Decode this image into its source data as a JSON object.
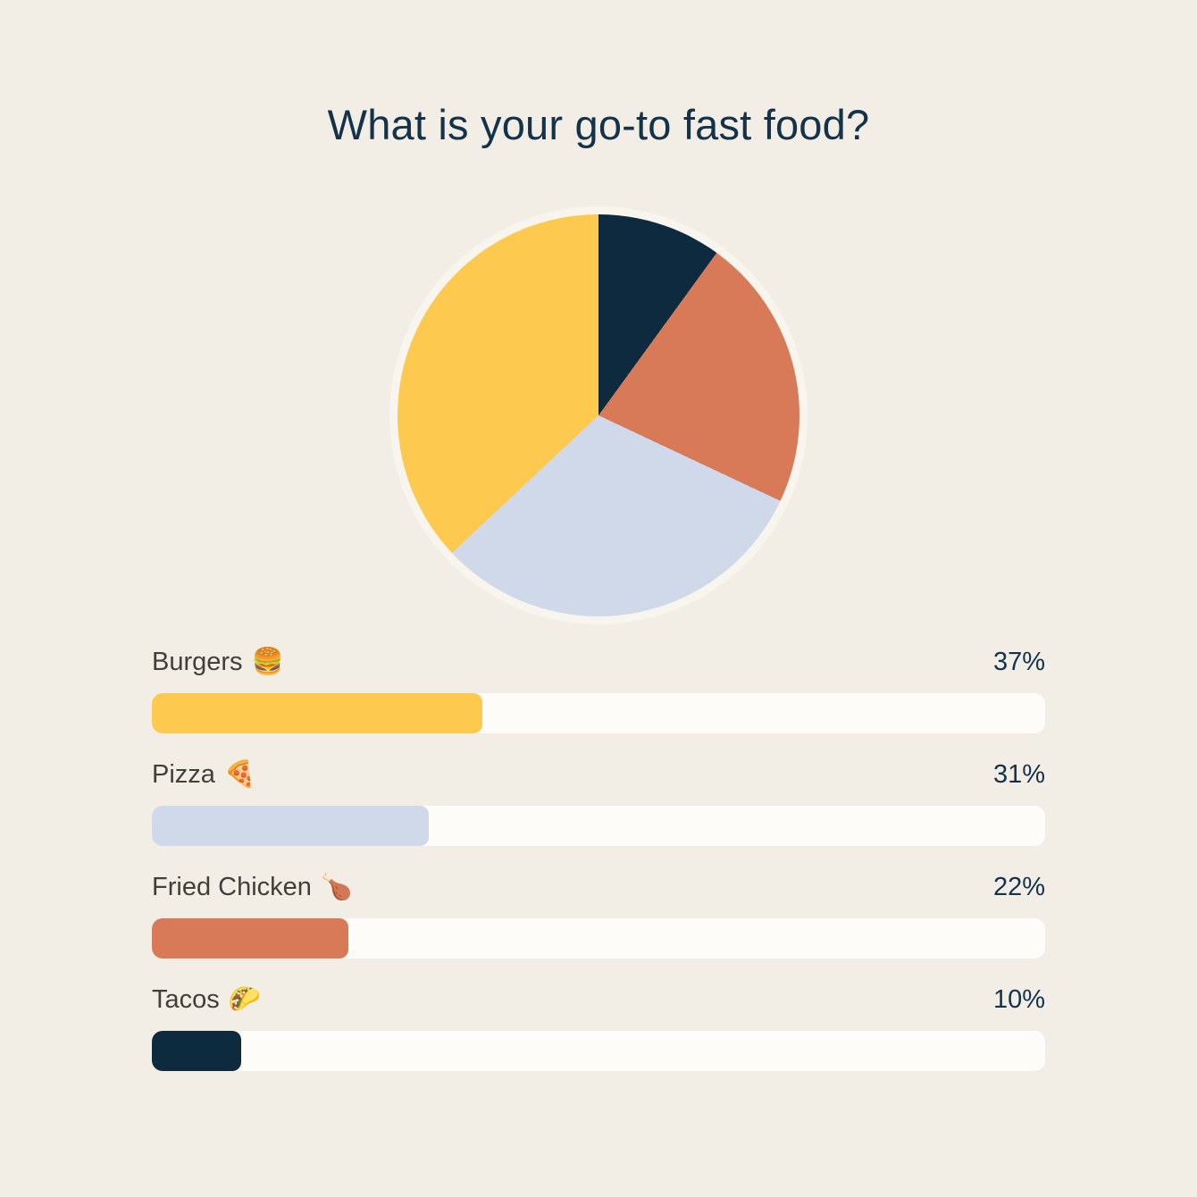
{
  "page": {
    "background": "#f2eee5",
    "title": "What is your go-to fast food?"
  },
  "colors": {
    "title_text": "#14324a",
    "label_text": "#403f3a",
    "percent_text": "#14324a",
    "bar_track": "#fdfcf8",
    "pie_navy": "#0d2a3e",
    "pie_orange": "#d87a58",
    "pie_blue": "#cfd9e9",
    "pie_yellow": "#fec94f"
  },
  "chart_data": {
    "type": "pie",
    "title": "What is your go-to fast food?",
    "categories": [
      "Burgers 🍔",
      "Pizza 🍕",
      "Fried Chicken 🍗",
      "Tacos 🌮"
    ],
    "values": [
      37,
      31,
      22,
      10
    ],
    "unit": "%",
    "legend_position": "bottom",
    "slices_clockwise_from_top": [
      {
        "label": "Tacos",
        "value": 10,
        "color": "#0d2a3e"
      },
      {
        "label": "Fried Chicken",
        "value": 22,
        "color": "#d87a58"
      },
      {
        "label": "Pizza",
        "value": 31,
        "color": "#cfd9e9"
      },
      {
        "label": "Burgers",
        "value": 37,
        "color": "#fec94f"
      }
    ]
  },
  "rows": [
    {
      "label": "Burgers",
      "emoji": "🍔",
      "value": 37,
      "percent_label": "37%",
      "color": "#fec94f"
    },
    {
      "label": "Pizza",
      "emoji": "🍕",
      "value": 31,
      "percent_label": "31%",
      "color": "#cfd9e9"
    },
    {
      "label": "Fried Chicken",
      "emoji": "🍗",
      "value": 22,
      "percent_label": "22%",
      "color": "#d87a58"
    },
    {
      "label": "Tacos",
      "emoji": "🌮",
      "value": 10,
      "percent_label": "10%",
      "color": "#0d2a3e"
    }
  ]
}
